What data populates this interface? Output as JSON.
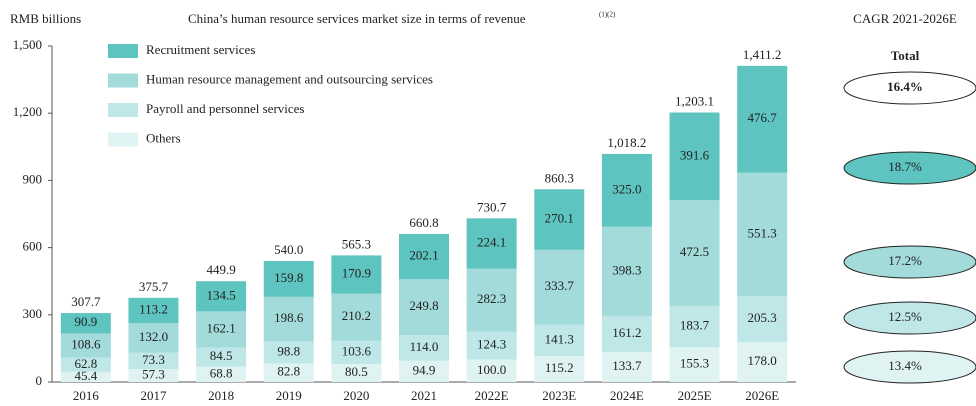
{
  "chart_data": {
    "type": "stacked_bar",
    "title": "China’s human resource services market size in terms of revenue",
    "title_note": "(1)(2)",
    "y_label": "RMB billions",
    "categories": [
      "2016",
      "2017",
      "2018",
      "2019",
      "2020",
      "2021",
      "2022E",
      "2023E",
      "2024E",
      "2025E",
      "2026E"
    ],
    "ylim": [
      0,
      1500
    ],
    "yticks": [
      0,
      300,
      600,
      900,
      {
        "value": 1200,
        "label": "1,200"
      },
      {
        "value": 1500,
        "label": "1,500"
      }
    ],
    "series": [
      {
        "name": "Others",
        "color": "#e0f3f3",
        "values": [
          45.4,
          57.3,
          68.8,
          82.8,
          80.5,
          94.9,
          100.0,
          115.2,
          133.7,
          155.3,
          178.0
        ],
        "value_labels": [
          "45.4",
          "57.3",
          "68.8",
          "82.8",
          "80.5",
          "94.9",
          "100.0",
          "115.2",
          "133.7",
          "155.3",
          "178.0"
        ],
        "cagr": 13.4,
        "cagr_label": "13.4%"
      },
      {
        "name": "Payroll and personnel services",
        "color": "#c0e7e7",
        "values": [
          62.8,
          73.3,
          84.5,
          98.8,
          103.6,
          114.0,
          124.3,
          141.3,
          161.2,
          183.7,
          205.3
        ],
        "value_labels": [
          "62.8",
          "73.3",
          "84.5",
          "98.8",
          "103.6",
          "114.0",
          "124.3",
          "141.3",
          "161.2",
          "183.7",
          "205.3"
        ],
        "cagr": 12.5,
        "cagr_label": "12.5%"
      },
      {
        "name": "Human resource management and outsourcing services",
        "color": "#a2dbda",
        "values": [
          108.6,
          132.0,
          162.1,
          198.6,
          210.2,
          249.8,
          282.3,
          333.7,
          398.3,
          472.5,
          551.3
        ],
        "value_labels": [
          "108.6",
          "132.0",
          "162.1",
          "198.6",
          "210.2",
          "249.8",
          "282.3",
          "333.7",
          "398.3",
          "472.5",
          "551.3"
        ],
        "cagr": 17.2,
        "cagr_label": "17.2%"
      },
      {
        "name": "Recruitment services",
        "color": "#5ec4c0",
        "values": [
          90.9,
          113.2,
          134.5,
          159.8,
          170.9,
          202.1,
          224.1,
          270.1,
          325.0,
          391.6,
          476.7
        ],
        "value_labels": [
          "90.9",
          "113.2",
          "134.5",
          "159.8",
          "170.9",
          "202.1",
          "224.1",
          "270.1",
          "325.0",
          "391.6",
          "476.7"
        ],
        "cagr": 18.7,
        "cagr_label": "18.7%"
      }
    ],
    "totals": [
      307.7,
      375.7,
      449.9,
      540.0,
      565.3,
      660.8,
      730.7,
      860.3,
      1018.2,
      1203.1,
      1411.2
    ],
    "total_labels": [
      "307.7",
      "375.7",
      "449.9",
      "540.0",
      "565.3",
      "660.8",
      "730.7",
      "860.3",
      "1,018.2",
      "1,203.1",
      "1,411.2"
    ],
    "cagr": {
      "title": "CAGR 2021-2026E",
      "header": "Total",
      "total": 16.4,
      "total_label": "16.4%"
    }
  }
}
